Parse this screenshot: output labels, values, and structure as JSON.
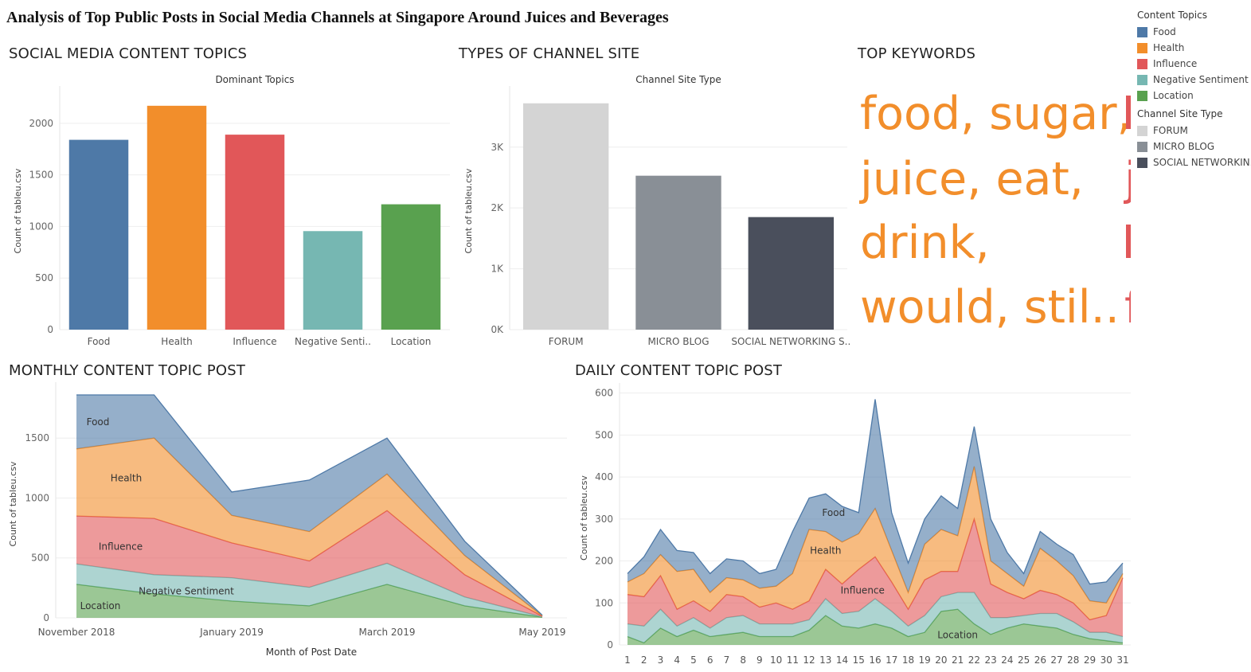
{
  "dashboard": {
    "title": "Analysis of Top Public Posts in Social Media Channels at Singapore Around Juices and Beverages"
  },
  "sections": {
    "topics": "SOCIAL MEDIA CONTENT TOPICS",
    "channel": "TYPES OF CHANNEL SITE",
    "keywords": "TOP KEYWORDS",
    "monthly": "MONTHLY CONTENT TOPIC POST",
    "daily": "DAILY CONTENT TOPIC POST"
  },
  "legend": {
    "topics_title": "Content Topics",
    "topics": [
      {
        "label": "Food",
        "color": "#4e79a7"
      },
      {
        "label": "Health",
        "color": "#f28e2b"
      },
      {
        "label": "Influence",
        "color": "#e15759"
      },
      {
        "label": "Negative Sentiment",
        "color": "#76b7b2"
      },
      {
        "label": "Location",
        "color": "#59a14f"
      }
    ],
    "channel_title": "Channel Site Type",
    "channels": [
      {
        "label": "FORUM",
        "color": "#d4d4d4"
      },
      {
        "label": "MICRO BLOG",
        "color": "#898f96"
      },
      {
        "label": "SOCIAL NETWORKIN..",
        "color": "#4a4f5c"
      }
    ]
  },
  "keywords": {
    "color": "#f28e2b",
    "cut_color": "#e15759",
    "lines": [
      "food, sugar,",
      "juice, eat,",
      "drink,",
      "would, stil.."
    ],
    "cut_lines": [
      "j",
      "f"
    ]
  },
  "chart_data": [
    {
      "type": "bar",
      "title": "Dominant Topics",
      "ylabel": "Count of tableu.csv",
      "categories": [
        "Food",
        "Health",
        "Influence",
        "Negative Senti..",
        "Location"
      ],
      "values": [
        1840,
        2170,
        1890,
        955,
        1215
      ],
      "colors": [
        "#4e79a7",
        "#f28e2b",
        "#e15759",
        "#76b7b2",
        "#59a14f"
      ],
      "yticks": [
        0,
        500,
        1000,
        1500,
        2000
      ],
      "ylim": [
        0,
        2300
      ]
    },
    {
      "type": "bar",
      "title": "Channel Site Type",
      "ylabel": "Count of tableu.csv",
      "categories": [
        "FORUM",
        "MICRO BLOG",
        "SOCIAL NETWORKING S.."
      ],
      "values": [
        3720,
        2530,
        1850
      ],
      "colors": [
        "#d4d4d4",
        "#898f96",
        "#4a4f5c"
      ],
      "yticks": [
        0,
        1000,
        2000,
        3000
      ],
      "ytick_labels": [
        "0K",
        "1K",
        "2K",
        "3K"
      ],
      "ylim": [
        0,
        3900
      ]
    },
    {
      "type": "area",
      "stacked": true,
      "xlabel": "Month of Post Date",
      "ylabel": "Count of tableu.csv",
      "x": [
        "2018-11",
        "2018-12",
        "2019-01",
        "2019-02",
        "2019-03",
        "2019-04",
        "2019-05"
      ],
      "xtick_labels": [
        {
          "at": "2018-11",
          "label": "November 2018"
        },
        {
          "at": "2019-01",
          "label": "January 2019"
        },
        {
          "at": "2019-03",
          "label": "March 2019"
        },
        {
          "at": "2019-05",
          "label": "May 2019"
        }
      ],
      "yticks": [
        0,
        500,
        1000,
        1500
      ],
      "ylim": [
        0,
        1900
      ],
      "series": [
        {
          "name": "Location",
          "color": "#59a14f",
          "values": [
            280,
            200,
            140,
            100,
            280,
            100,
            5
          ]
        },
        {
          "name": "Negative Sentiment",
          "color": "#76b7b2",
          "values": [
            170,
            160,
            195,
            155,
            175,
            75,
            3
          ]
        },
        {
          "name": "Influence",
          "color": "#e15759",
          "values": [
            400,
            470,
            290,
            220,
            440,
            185,
            5
          ]
        },
        {
          "name": "Health",
          "color": "#f28e2b",
          "values": [
            560,
            670,
            230,
            245,
            305,
            160,
            5
          ]
        },
        {
          "name": "Food",
          "color": "#4e79a7",
          "values": [
            450,
            360,
            195,
            430,
            300,
            120,
            4
          ]
        }
      ]
    },
    {
      "type": "area",
      "stacked": true,
      "ylabel": "Count of tableu.csv",
      "x": [
        1,
        2,
        3,
        4,
        5,
        6,
        7,
        8,
        9,
        10,
        11,
        12,
        13,
        14,
        15,
        16,
        17,
        18,
        19,
        20,
        21,
        22,
        23,
        24,
        25,
        26,
        27,
        28,
        29,
        30,
        31
      ],
      "yticks": [
        0,
        100,
        200,
        300,
        400,
        500,
        600
      ],
      "ylim": [
        0,
        605
      ],
      "series": [
        {
          "name": "Location",
          "color": "#59a14f",
          "values": [
            20,
            5,
            40,
            20,
            35,
            20,
            25,
            30,
            20,
            20,
            20,
            35,
            70,
            45,
            40,
            50,
            40,
            20,
            30,
            80,
            85,
            50,
            25,
            40,
            50,
            45,
            40,
            25,
            15,
            10,
            5
          ]
        },
        {
          "name": "Negative Sentiment",
          "color": "#76b7b2",
          "values": [
            30,
            40,
            45,
            25,
            30,
            20,
            40,
            40,
            30,
            30,
            30,
            25,
            40,
            30,
            40,
            60,
            40,
            25,
            40,
            35,
            40,
            75,
            40,
            25,
            20,
            30,
            35,
            30,
            15,
            20,
            15
          ]
        },
        {
          "name": "Influence",
          "color": "#e15759",
          "values": [
            70,
            70,
            80,
            40,
            40,
            40,
            55,
            45,
            40,
            50,
            35,
            45,
            70,
            70,
            100,
            100,
            70,
            40,
            85,
            60,
            50,
            175,
            80,
            60,
            40,
            55,
            45,
            45,
            30,
            40,
            140
          ]
        },
        {
          "name": "Health",
          "color": "#f28e2b",
          "values": [
            30,
            55,
            50,
            90,
            75,
            45,
            40,
            40,
            45,
            40,
            85,
            170,
            90,
            100,
            85,
            115,
            75,
            40,
            85,
            100,
            85,
            125,
            55,
            45,
            30,
            100,
            80,
            65,
            45,
            30,
            10
          ]
        },
        {
          "name": "Food",
          "color": "#4e79a7",
          "values": [
            20,
            40,
            60,
            50,
            40,
            45,
            45,
            45,
            35,
            40,
            100,
            75,
            90,
            85,
            50,
            260,
            90,
            70,
            60,
            80,
            65,
            95,
            100,
            50,
            30,
            40,
            40,
            50,
            40,
            50,
            25
          ]
        }
      ]
    }
  ]
}
